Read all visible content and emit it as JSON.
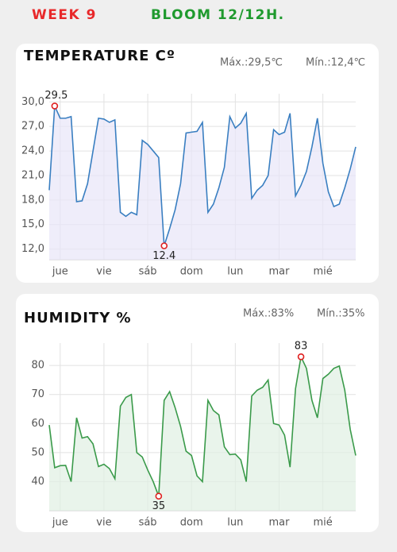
{
  "header": {
    "week": "WEEK 9",
    "stage": "BLOOM 12/12H."
  },
  "chart_data": [
    {
      "type": "line",
      "title": "TEMPERATURE Cº",
      "max_label": "Máx.:29,5℃",
      "min_label": "Mín.:12,4℃",
      "categories": [
        null,
        null,
        "jue",
        null,
        null,
        null,
        null,
        null,
        null,
        null,
        "vie",
        null,
        null,
        null,
        null,
        null,
        null,
        null,
        "sáb",
        null,
        null,
        null,
        null,
        null,
        null,
        null,
        "dom",
        null,
        null,
        null,
        null,
        null,
        null,
        null,
        "lun",
        null,
        null,
        null,
        null,
        null,
        null,
        null,
        "mar",
        null,
        null,
        null,
        null,
        null,
        null,
        null,
        "mié",
        null,
        null,
        null,
        null,
        null,
        null
      ],
      "values": [
        19.2,
        29.5,
        28.0,
        28.0,
        28.2,
        17.8,
        17.9,
        20.0,
        24.0,
        28.0,
        27.9,
        27.5,
        27.8,
        16.5,
        16.0,
        16.5,
        16.2,
        25.3,
        24.8,
        24.0,
        23.2,
        12.4,
        14.5,
        16.8,
        20.0,
        26.2,
        26.3,
        26.4,
        27.5,
        16.5,
        17.5,
        19.5,
        22.0,
        28.2,
        26.8,
        27.4,
        28.6,
        18.2,
        19.2,
        19.8,
        21.0,
        26.6,
        26.0,
        26.3,
        28.6,
        18.5,
        19.8,
        21.5,
        24.5,
        28.0,
        22.5,
        19.0,
        17.2,
        17.5,
        19.5,
        21.8,
        24.5
      ],
      "color": "#3a7fc1",
      "fill": "#e8e6f8",
      "ylim": [
        10.7,
        31
      ],
      "yticks": [
        {
          "value": 12,
          "label": "12,0"
        },
        {
          "value": 15,
          "label": "15,0"
        },
        {
          "value": 18,
          "label": "18,0"
        },
        {
          "value": 21,
          "label": "21,0"
        },
        {
          "value": 24,
          "label": "24,0"
        },
        {
          "value": 27,
          "label": "27,0"
        },
        {
          "value": 30,
          "label": "30,0"
        }
      ],
      "grid": true
    },
    {
      "type": "line",
      "title": "HUMIDITY %",
      "max_label": "Máx.:83%",
      "min_label": "Mín.:35%",
      "categories": [
        null,
        null,
        "jue",
        null,
        null,
        null,
        null,
        null,
        null,
        null,
        "vie",
        null,
        null,
        null,
        null,
        null,
        null,
        null,
        "sáb",
        null,
        null,
        null,
        null,
        null,
        null,
        null,
        "dom",
        null,
        null,
        null,
        null,
        null,
        null,
        null,
        "lun",
        null,
        null,
        null,
        null,
        null,
        null,
        null,
        "mar",
        null,
        null,
        null,
        null,
        null,
        null,
        null,
        "mié",
        null,
        null,
        null,
        null,
        null,
        null
      ],
      "values": [
        59.5,
        44.8,
        45.5,
        45.6,
        40,
        62,
        55,
        55.5,
        53,
        45.2,
        46,
        44.5,
        41,
        66,
        69,
        70,
        50,
        48.5,
        44,
        40,
        35,
        68,
        71,
        65.5,
        59,
        50.5,
        49,
        42,
        40,
        68,
        64.5,
        63,
        52,
        49.3,
        49.5,
        47.5,
        40,
        69.5,
        71.5,
        72.5,
        75,
        60,
        59.5,
        56,
        45,
        72,
        83,
        79,
        68,
        62,
        75.5,
        77,
        79,
        79.8,
        71.5,
        58,
        49
      ],
      "color": "#3a9a4a",
      "fill": "#dff0e2",
      "ylim": [
        30,
        87.7
      ],
      "yticks": [
        40,
        50,
        60,
        70,
        80
      ],
      "grid": true
    }
  ]
}
